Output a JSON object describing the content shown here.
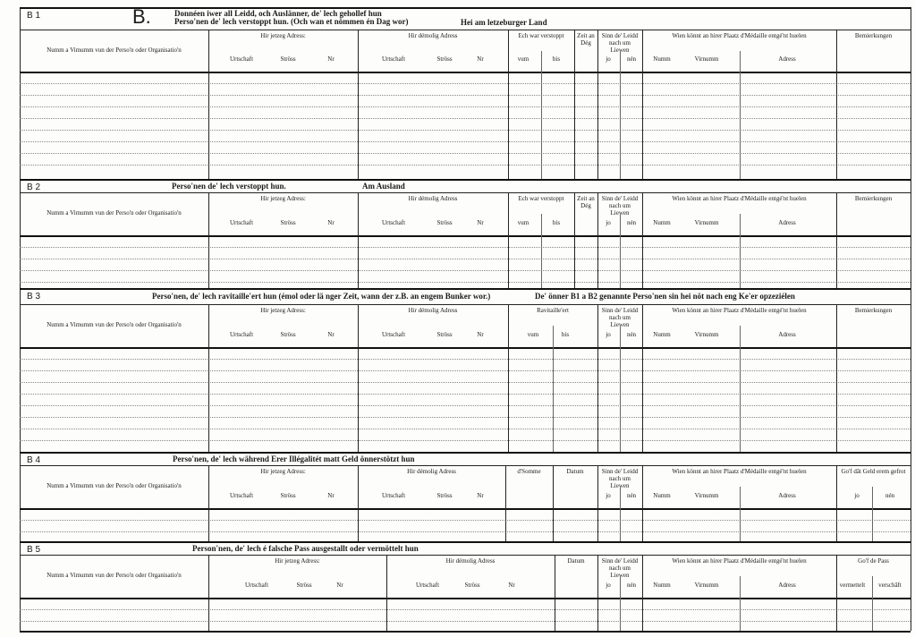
{
  "sections": [
    {
      "label": "B 1",
      "mark": "B.",
      "title": [
        "Donnéen iwer all Leidd, och Auslänner, de' lech gehollef hun",
        "Perso'nen de' lech verstoppt hun. (Och wan et nömmen én Dag wor)"
      ],
      "note": "Hei am letzeburger Land",
      "columns": [
        {
          "label": "Numm a Vimumm vun der Perso'n oder Organisatio'n"
        },
        {
          "label": "Hir jetzeg Adress:",
          "sub": [
            "Urtschaft",
            "Ströss",
            "Nr"
          ]
        },
        {
          "label": "Hir démolig Adress",
          "sub": [
            "Urtschaft",
            "Ströss",
            "Nr"
          ]
        },
        {
          "label": "Ech war verstoppt",
          "sub": [
            "vum",
            "bis"
          ]
        },
        {
          "label": "Zeit an Dég"
        },
        {
          "label": "Sinn de' Leidd nach um Liewen",
          "sub": [
            "jo",
            "nén"
          ]
        },
        {
          "label": "Wien könnt an hirer Plaatz d'Médaille entgé'nt huelen",
          "sub": [
            "Numm",
            "Virnumm",
            "Adress"
          ]
        },
        {
          "label": "Bemierkungen"
        }
      ]
    },
    {
      "label": "B 2",
      "title": [
        "Perso'nen de' lech verstoppt hun."
      ],
      "note": "Am Ausland",
      "columns": [
        {
          "label": "Numm a Vimumm vun der Perso'n oder Organisatio'n"
        },
        {
          "label": "Hir jetzeg Adress:",
          "sub": [
            "Urtschaft",
            "Ströss",
            "Nr"
          ]
        },
        {
          "label": "Hir démolig Adress",
          "sub": [
            "Urtschaft",
            "Ströss",
            "Nr"
          ]
        },
        {
          "label": "Ech war verstoppt",
          "sub": [
            "vum",
            "bis"
          ]
        },
        {
          "label": "Zeit an Dég"
        },
        {
          "label": "Sinn de' Leidd nach um Liewen",
          "sub": [
            "jo",
            "nén"
          ]
        },
        {
          "label": "Wien könnt an hirer Plaatz d'Médaille entgé'nt huelen",
          "sub": [
            "Numm",
            "Virnumm",
            "Adress"
          ]
        },
        {
          "label": "Bemierkungen"
        }
      ]
    },
    {
      "label": "B 3",
      "title": [
        "Perso'nen, de' lech ravitaille'ert hun (émol oder lä nger Zeit, wann der z.B. an engem Bunker wor.)"
      ],
      "note": "De' önner B1 a B2 genannte Perso'nen sin hei nöt nach eng Ke'er opzeziélen",
      "columns": [
        {
          "label": "Numm a Vimumm vun der Perso'n oder Organisatio'n"
        },
        {
          "label": "Hir jetzeg Adress:",
          "sub": [
            "Urtschaft",
            "Ströss",
            "Nr"
          ]
        },
        {
          "label": "Hir démolig Adress",
          "sub": [
            "Urtschaft",
            "Ströss",
            "Nr"
          ]
        },
        {
          "label": "Ravitaille'ert",
          "sub": [
            "vum",
            "bis"
          ]
        },
        {
          "label": "Sinn de' Leidd nach um Liewen",
          "sub": [
            "jo",
            "nén"
          ]
        },
        {
          "label": "Wien könnt an hirer Plaatz d'Médaille entgé'nt huelen",
          "sub": [
            "Numm",
            "Virnumm",
            "Adress"
          ]
        },
        {
          "label": "Bemierkungen"
        }
      ]
    },
    {
      "label": "B 4",
      "title": [
        "Perso'nen, de' lech während Erer Illégalitét matt Geld önnerstötzt hun"
      ],
      "columns": [
        {
          "label": "Numm a Vimumm vun der Perso'n oder Organisatio'n"
        },
        {
          "label": "Hir jetzeg Adress:",
          "sub": [
            "Urtschaft",
            "Ströss",
            "Nr"
          ]
        },
        {
          "label": "Hir démolig Adress",
          "sub": [
            "Urtschaft",
            "Ströss",
            "Nr"
          ]
        },
        {
          "label": "d'Somme"
        },
        {
          "label": "Datum"
        },
        {
          "label": "Sinn de' Leidd nach um Liewen",
          "sub": [
            "jo",
            "nén"
          ]
        },
        {
          "label": "Wien könnt an hirer Plaatz d'Médaille entgé'nt huelen",
          "sub": [
            "Numm",
            "Virnumm",
            "Adress"
          ]
        },
        {
          "label": "Go'f dât Geld erem gefrot",
          "sub": [
            "jo",
            "nén"
          ]
        }
      ]
    },
    {
      "label": "B 5",
      "title": [
        "Person'nen, de' lech é falsche Pass ausgestallt oder vermöttelt hun"
      ],
      "columns": [
        {
          "label": "Numm a Vimumm vun der Perso'n oder Organisatio'n"
        },
        {
          "label": "Hir jetzeg Adress:",
          "sub": [
            "Urtschaft",
            "Ströss",
            "Nr"
          ]
        },
        {
          "label": "Hir démolig Adress",
          "sub": [
            "Urtschaft",
            "Ströss",
            "Nr"
          ]
        },
        {
          "label": "Datum"
        },
        {
          "label": "Sinn de' Leidd nach um Liewen",
          "sub": [
            "jo",
            "nén"
          ]
        },
        {
          "label": "Wien könnt an hirer Plaatz d'Médaille entgé'nt huelen",
          "sub": [
            "Numm",
            "Virnumm",
            "Adress"
          ]
        },
        {
          "label": "Go'f de Pass",
          "sub": [
            "vermettelt",
            "verschâft"
          ]
        }
      ]
    }
  ]
}
